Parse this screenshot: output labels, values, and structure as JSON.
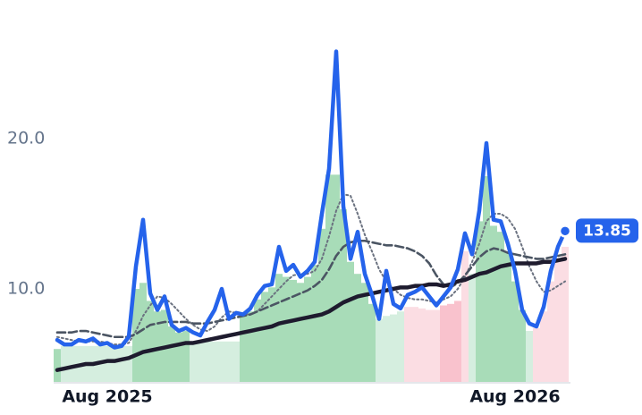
{
  "chart_data": {
    "type": "line",
    "categories": [
      null,
      null,
      null,
      null,
      null,
      null,
      null,
      "Aug 2025",
      null,
      null,
      null,
      null,
      null,
      null,
      null,
      null,
      null,
      null,
      null,
      null,
      null,
      null,
      null,
      null,
      null,
      null,
      null,
      null,
      null,
      null,
      null,
      null,
      null,
      null,
      null,
      null,
      null,
      null,
      null,
      null,
      null,
      null,
      null,
      null,
      null,
      null,
      null,
      null,
      null,
      null,
      null,
      null,
      null,
      null,
      null,
      null,
      null,
      null,
      null,
      null,
      null,
      null,
      null,
      null,
      "Aug 2026",
      null,
      null,
      null,
      null,
      null,
      null,
      null
    ],
    "ylim": [
      3.75,
      28
    ],
    "yticks": [
      {
        "value": 10,
        "label": "10.0"
      },
      {
        "value": 20,
        "label": "20.0"
      }
    ],
    "grid": false,
    "bars": {
      "values": [
        6.0,
        6.2,
        6.2,
        6.2,
        6.2,
        6.2,
        6.2,
        6.2,
        6.2,
        6.2,
        6.2,
        10.0,
        10.4,
        9.2,
        8.5,
        8.6,
        7.5,
        7.1,
        7.2,
        6.5,
        6.5,
        6.5,
        6.5,
        6.5,
        6.5,
        6.5,
        8.2,
        8.5,
        9.3,
        9.8,
        10.1,
        11.0,
        10.8,
        10.6,
        10.4,
        10.8,
        11.6,
        14.0,
        17.6,
        17.6,
        15.3,
        11.8,
        11.0,
        10.4,
        9.0,
        8.0,
        8.2,
        8.3,
        8.5,
        8.8,
        8.8,
        8.7,
        8.6,
        8.6,
        8.9,
        9.0,
        9.2,
        12.5,
        11.0,
        14.5,
        17.5,
        14.2,
        13.8,
        12.5,
        10.5,
        8.6,
        7.2,
        7.4,
        8.5,
        10.5,
        12.0,
        12.8
      ],
      "colors": [
        "#a8dcb8",
        "#d5eedf",
        "#d5eedf",
        "#d5eedf",
        "#d5eedf",
        "#d5eedf",
        "#d5eedf",
        "#d5eedf",
        "#d5eedf",
        "#d5eedf",
        "#d5eedf",
        "#a8dcb8",
        "#a8dcb8",
        "#a8dcb8",
        "#a8dcb8",
        "#a8dcb8",
        "#a8dcb8",
        "#a8dcb8",
        "#a8dcb8",
        "#d5eedf",
        "#d5eedf",
        "#d5eedf",
        "#d5eedf",
        "#d5eedf",
        "#d5eedf",
        "#d5eedf",
        "#a8dcb8",
        "#a8dcb8",
        "#a8dcb8",
        "#a8dcb8",
        "#a8dcb8",
        "#a8dcb8",
        "#a8dcb8",
        "#a8dcb8",
        "#a8dcb8",
        "#a8dcb8",
        "#a8dcb8",
        "#a8dcb8",
        "#a8dcb8",
        "#a8dcb8",
        "#a8dcb8",
        "#a8dcb8",
        "#a8dcb8",
        "#a8dcb8",
        "#a8dcb8",
        "#d5eedf",
        "#d5eedf",
        "#d5eedf",
        "#d5eedf",
        "#fbdde3",
        "#fbdde3",
        "#fbdde3",
        "#fbdde3",
        "#fbdde3",
        "#f9c2cd",
        "#f9c2cd",
        "#f9c2cd",
        "#fbdde3",
        "#d5eedf",
        "#a8dcb8",
        "#a8dcb8",
        "#a8dcb8",
        "#a8dcb8",
        "#a8dcb8",
        "#a8dcb8",
        "#a8dcb8",
        "#d5eedf",
        "#fbdde3",
        "#fbdde3",
        "#fbdde3",
        "#fbdde3",
        "#fbdde3"
      ]
    },
    "series": [
      {
        "color": "#2563eb",
        "style": "solid",
        "end_label": true,
        "values": [
          6.6,
          6.3,
          6.3,
          6.6,
          6.5,
          6.7,
          6.3,
          6.4,
          6.1,
          6.2,
          6.8,
          11.5,
          14.6,
          9.7,
          8.6,
          9.5,
          7.6,
          7.2,
          7.4,
          7.1,
          6.9,
          7.8,
          8.6,
          10.0,
          8.0,
          8.4,
          8.3,
          8.7,
          9.6,
          10.2,
          10.3,
          12.8,
          11.2,
          11.6,
          10.8,
          11.2,
          11.8,
          15.0,
          18.0,
          25.8,
          15.5,
          12.0,
          13.8,
          11.0,
          9.6,
          8.0,
          11.2,
          9.0,
          8.7,
          9.6,
          9.8,
          10.1,
          9.5,
          8.9,
          9.5,
          10.1,
          11.3,
          13.7,
          12.3,
          15.2,
          19.7,
          14.6,
          14.5,
          13.0,
          11.2,
          8.6,
          7.7,
          7.5,
          8.8,
          11.2,
          12.8,
          13.85
        ]
      },
      {
        "color": "#1e1b2e",
        "style": "solid",
        "values": [
          4.6,
          4.7,
          4.8,
          4.9,
          5.0,
          5.0,
          5.1,
          5.2,
          5.2,
          5.3,
          5.4,
          5.6,
          5.8,
          5.9,
          6.0,
          6.1,
          6.2,
          6.3,
          6.4,
          6.4,
          6.5,
          6.6,
          6.7,
          6.8,
          6.9,
          7.0,
          7.1,
          7.2,
          7.3,
          7.4,
          7.5,
          7.7,
          7.8,
          7.9,
          8.0,
          8.1,
          8.2,
          8.3,
          8.5,
          8.8,
          9.1,
          9.3,
          9.5,
          9.6,
          9.7,
          9.8,
          9.9,
          10.0,
          10.1,
          10.1,
          10.2,
          10.2,
          10.3,
          10.3,
          10.2,
          10.3,
          10.5,
          10.6,
          10.8,
          11.0,
          11.1,
          11.3,
          11.5,
          11.6,
          11.7,
          11.7,
          11.7,
          11.7,
          11.8,
          11.8,
          11.9,
          12.0
        ]
      },
      {
        "color": "#4b5563",
        "style": "dashed",
        "values": [
          7.1,
          7.1,
          7.1,
          7.2,
          7.2,
          7.1,
          7.0,
          6.9,
          6.8,
          6.8,
          6.8,
          7.0,
          7.3,
          7.6,
          7.7,
          7.8,
          7.8,
          7.8,
          7.8,
          7.7,
          7.7,
          7.7,
          7.8,
          7.9,
          8.0,
          8.1,
          8.2,
          8.3,
          8.5,
          8.7,
          8.9,
          9.1,
          9.3,
          9.5,
          9.7,
          9.9,
          10.2,
          10.6,
          11.3,
          12.2,
          12.8,
          13.1,
          13.2,
          13.2,
          13.1,
          13.0,
          12.9,
          12.9,
          12.8,
          12.7,
          12.5,
          12.2,
          11.7,
          10.9,
          10.3,
          10.1,
          10.4,
          10.9,
          11.5,
          12.1,
          12.5,
          12.7,
          12.6,
          12.4,
          12.3,
          12.2,
          12.1,
          12.0,
          12.0,
          12.1,
          12.2,
          12.3
        ]
      },
      {
        "color": "#6b7280",
        "style": "dotted",
        "values": [
          6.8,
          6.7,
          6.6,
          6.5,
          6.5,
          6.5,
          6.5,
          6.4,
          6.3,
          6.3,
          6.4,
          7.2,
          8.2,
          8.9,
          9.5,
          9.4,
          9.0,
          8.5,
          8.0,
          7.6,
          7.3,
          7.2,
          7.5,
          8.1,
          8.5,
          8.4,
          8.3,
          8.3,
          8.5,
          9.0,
          9.5,
          10.0,
          10.5,
          10.9,
          11.0,
          11.0,
          11.2,
          12.0,
          13.5,
          15.2,
          16.3,
          16.2,
          15.0,
          13.6,
          12.5,
          11.3,
          10.5,
          10.0,
          9.6,
          9.4,
          9.3,
          9.3,
          9.2,
          9.1,
          9.3,
          9.5,
          10.0,
          10.8,
          11.8,
          13.0,
          14.5,
          15.0,
          15.0,
          14.7,
          14.0,
          12.8,
          11.5,
          10.5,
          9.8,
          9.9,
          10.2,
          10.5
        ]
      }
    ]
  }
}
